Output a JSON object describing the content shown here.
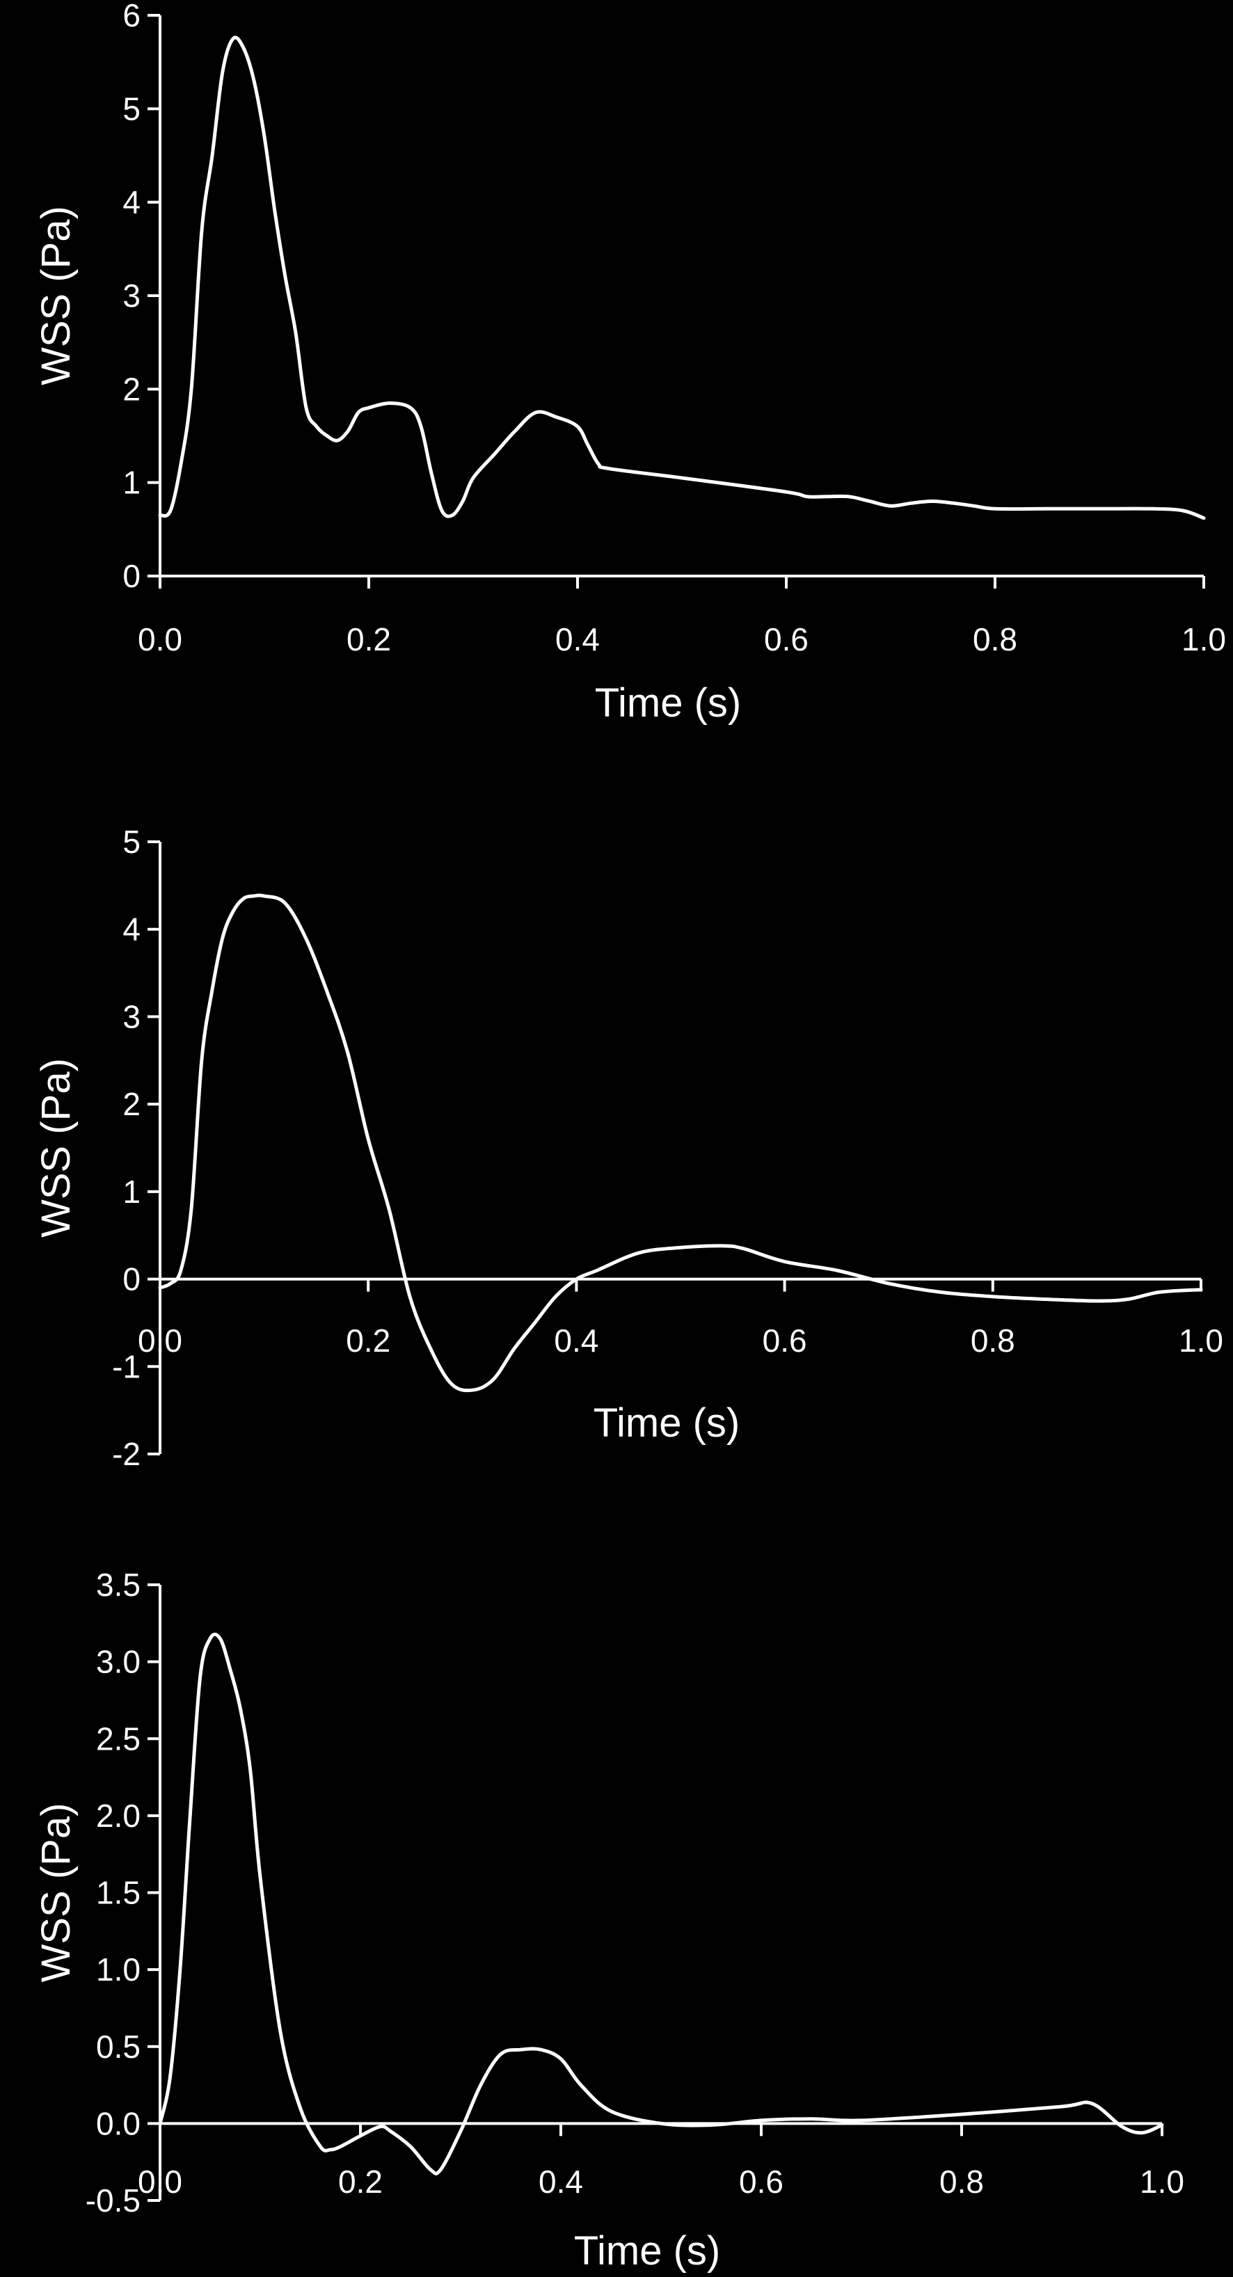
{
  "chart_data": [
    {
      "type": "line",
      "xlabel": "Time (s)",
      "ylabel": "WSS (Pa)",
      "xlim": [
        0,
        1
      ],
      "ylim": [
        0,
        6
      ],
      "xticks": [
        0,
        0.2,
        0.4,
        0.6,
        0.8,
        1.0
      ],
      "xtick_labels": [
        "0.0",
        "0.2",
        "0.4",
        "0.6",
        "0.8",
        "1.0"
      ],
      "yticks": [
        0,
        1,
        2,
        3,
        4,
        5,
        6
      ],
      "ytick_labels": [
        "0",
        "1",
        "2",
        "3",
        "4",
        "5",
        "6"
      ],
      "zero_line": false,
      "series": [
        {
          "x": [
            0,
            0.01,
            0.02,
            0.03,
            0.04,
            0.05,
            0.06,
            0.07,
            0.08,
            0.09,
            0.1,
            0.11,
            0.12,
            0.13,
            0.14,
            0.15,
            0.16,
            0.17,
            0.18,
            0.19,
            0.2,
            0.22,
            0.24,
            0.25,
            0.26,
            0.27,
            0.28,
            0.29,
            0.3,
            0.32,
            0.34,
            0.36,
            0.38,
            0.4,
            0.41,
            0.42,
            0.43,
            0.5,
            0.6,
            0.62,
            0.64,
            0.66,
            0.68,
            0.7,
            0.72,
            0.74,
            0.76,
            0.78,
            0.8,
            0.85,
            0.9,
            0.95,
            0.98,
            1.0
          ],
          "values": [
            0.65,
            0.7,
            1.2,
            2.0,
            3.7,
            4.5,
            5.4,
            5.75,
            5.65,
            5.3,
            4.7,
            3.9,
            3.2,
            2.6,
            1.8,
            1.6,
            1.5,
            1.45,
            1.55,
            1.75,
            1.8,
            1.85,
            1.8,
            1.6,
            1.1,
            0.7,
            0.65,
            0.8,
            1.05,
            1.3,
            1.55,
            1.75,
            1.7,
            1.6,
            1.4,
            1.2,
            1.15,
            1.05,
            0.9,
            0.85,
            0.85,
            0.85,
            0.8,
            0.75,
            0.78,
            0.8,
            0.78,
            0.75,
            0.72,
            0.72,
            0.72,
            0.72,
            0.7,
            0.62
          ]
        }
      ]
    },
    {
      "type": "line",
      "xlabel": "Time (s)",
      "ylabel": "WSS (Pa)",
      "xlim": [
        0,
        1
      ],
      "ylim": [
        -2,
        5
      ],
      "xticks": [
        0,
        0.2,
        0.4,
        0.6,
        0.8,
        1.0
      ],
      "xtick_labels": [
        "0.0",
        "0.2",
        "0.4",
        "0.6",
        "0.8",
        "1.0"
      ],
      "yticks": [
        -2,
        -1,
        0,
        1,
        2,
        3,
        4,
        5
      ],
      "ytick_labels": [
        "-2",
        "-1",
        "0",
        "1",
        "2",
        "3",
        "4",
        "5"
      ],
      "zero_line": true,
      "series": [
        {
          "x": [
            0,
            0.01,
            0.02,
            0.03,
            0.04,
            0.05,
            0.06,
            0.07,
            0.08,
            0.09,
            0.1,
            0.12,
            0.14,
            0.16,
            0.18,
            0.2,
            0.22,
            0.24,
            0.26,
            0.28,
            0.3,
            0.32,
            0.34,
            0.36,
            0.38,
            0.4,
            0.42,
            0.46,
            0.5,
            0.54,
            0.56,
            0.6,
            0.65,
            0.7,
            0.75,
            0.8,
            0.85,
            0.9,
            0.93,
            0.96,
            1.0
          ],
          "values": [
            -0.1,
            -0.05,
            0.1,
            0.8,
            2.5,
            3.3,
            3.9,
            4.2,
            4.35,
            4.38,
            4.38,
            4.3,
            3.9,
            3.3,
            2.6,
            1.6,
            0.8,
            -0.2,
            -0.8,
            -1.2,
            -1.27,
            -1.15,
            -0.8,
            -0.5,
            -0.2,
            0.0,
            0.1,
            0.3,
            0.36,
            0.38,
            0.35,
            0.2,
            0.1,
            -0.05,
            -0.15,
            -0.2,
            -0.23,
            -0.25,
            -0.23,
            -0.15,
            -0.12
          ]
        }
      ]
    },
    {
      "type": "line",
      "xlabel": "Time (s)",
      "ylabel": "WSS (Pa)",
      "xlim": [
        0,
        1
      ],
      "ylim": [
        -0.5,
        3.5
      ],
      "xticks": [
        0,
        0.2,
        0.4,
        0.6,
        0.8,
        1.0
      ],
      "xtick_labels": [
        "0.0",
        "0.2",
        "0.4",
        "0.6",
        "0.8",
        "1.0"
      ],
      "yticks": [
        -0.5,
        0,
        0.5,
        1.0,
        1.5,
        2.0,
        2.5,
        3.0,
        3.5
      ],
      "ytick_labels": [
        "-0.5",
        "0.0",
        "0.5",
        "1.0",
        "1.5",
        "2.0",
        "2.5",
        "3.0",
        "3.5"
      ],
      "zero_line": true,
      "series": [
        {
          "x": [
            0,
            0.01,
            0.02,
            0.03,
            0.04,
            0.05,
            0.06,
            0.07,
            0.08,
            0.09,
            0.1,
            0.12,
            0.14,
            0.16,
            0.17,
            0.18,
            0.2,
            0.22,
            0.23,
            0.25,
            0.27,
            0.28,
            0.3,
            0.32,
            0.34,
            0.36,
            0.38,
            0.4,
            0.42,
            0.45,
            0.5,
            0.55,
            0.6,
            0.65,
            0.7,
            0.8,
            0.9,
            0.93,
            0.96,
            0.98,
            1.0
          ],
          "values": [
            0.0,
            0.3,
            1.0,
            2.0,
            2.9,
            3.15,
            3.15,
            2.95,
            2.7,
            2.3,
            1.6,
            0.6,
            0.1,
            -0.15,
            -0.17,
            -0.15,
            -0.08,
            -0.02,
            -0.05,
            -0.15,
            -0.3,
            -0.3,
            -0.05,
            0.25,
            0.45,
            0.48,
            0.48,
            0.42,
            0.25,
            0.08,
            0.0,
            -0.01,
            0.02,
            0.03,
            0.02,
            0.06,
            0.11,
            0.13,
            -0.02,
            -0.06,
            -0.01
          ]
        }
      ]
    }
  ]
}
